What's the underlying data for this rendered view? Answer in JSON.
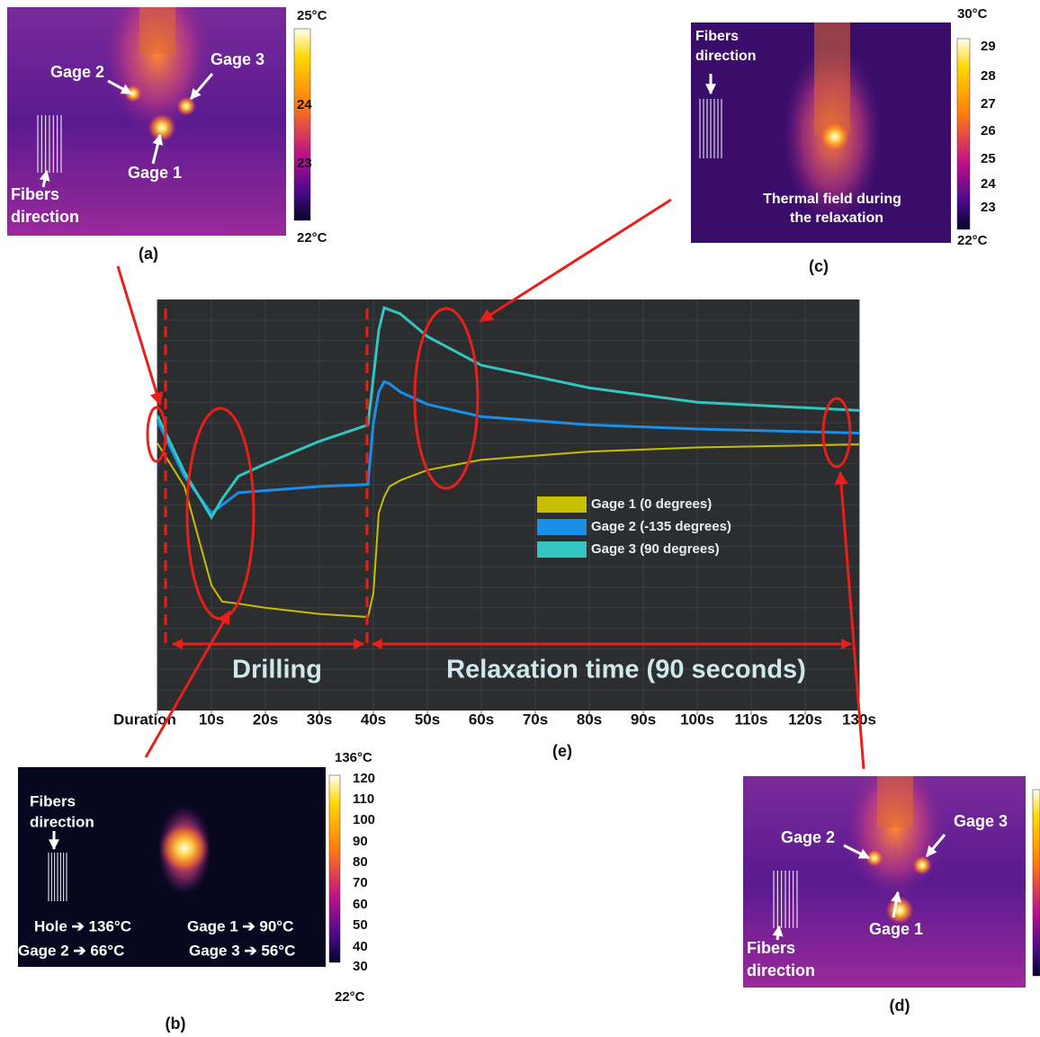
{
  "panels": [
    {
      "caption": "(a)",
      "labels": [
        "Gage 2",
        "Gage 3",
        "Gage 1",
        "Fibers",
        "direction"
      ],
      "colorbar": [
        "25°C",
        "24",
        "23",
        "22°C"
      ]
    },
    {
      "caption": "(c)",
      "labels": [
        "Fibers",
        "direction",
        "Thermal field during",
        "the relaxation"
      ],
      "colorbar": [
        "30°C",
        "29",
        "28",
        "27",
        "26",
        "25",
        "24",
        "23",
        "22°C"
      ]
    },
    {
      "caption": "(b)",
      "labels": [
        "Fibers",
        "direction",
        "Hole ➔ 136°C",
        "Gage 1 ➔ 90°C",
        "Gage 2 ➔ 66°C",
        "Gage 3 ➔ 56°C"
      ],
      "colorbar": [
        "136°C",
        "120",
        "110",
        "100",
        "90",
        "80",
        "70",
        "60",
        "50",
        "40",
        "30",
        "22°C"
      ]
    },
    {
      "caption": "(d)",
      "labels": [
        "Gage 2",
        "Gage 3",
        "Gage 1",
        "Fibers",
        "direction"
      ],
      "colorbar": []
    }
  ],
  "chart_data": {
    "type": "line",
    "caption": "(e)",
    "annotations": [
      "Drilling",
      "Relaxation time (90 seconds)"
    ],
    "x": [
      0,
      5,
      10,
      12,
      15,
      20,
      30,
      39,
      40,
      41,
      42,
      43,
      45,
      50,
      60,
      80,
      100,
      130
    ],
    "series": [
      {
        "name": "Gage 1 (0 degrees)",
        "color": "#c8bf00",
        "values": [
          13.0,
          10.9,
          6.1,
          5.3,
          5.2,
          5.0,
          4.7,
          4.55,
          5.7,
          9.6,
          10.4,
          10.9,
          11.2,
          11.7,
          12.2,
          12.6,
          12.8,
          12.95
        ]
      },
      {
        "name": "Gage 2 (-135 degrees)",
        "color": "#1a8fe8",
        "values": [
          14.1,
          11.4,
          9.6,
          10.0,
          10.6,
          10.7,
          10.9,
          11.0,
          14.0,
          15.5,
          16.0,
          15.9,
          15.5,
          14.9,
          14.3,
          13.9,
          13.7,
          13.5
        ]
      },
      {
        "name": "Gage 3 (90 degrees)",
        "color": "#33c6c0",
        "values": [
          14.35,
          11.6,
          9.4,
          10.3,
          11.4,
          12.0,
          13.1,
          13.9,
          16.2,
          18.5,
          19.6,
          19.5,
          19.3,
          18.2,
          16.8,
          15.7,
          15.0,
          14.6
        ]
      }
    ],
    "xlim": [
      0,
      130
    ],
    "ylim": [
      0,
      20
    ],
    "xticks": [
      {
        "value": 0,
        "label": "Duration"
      },
      {
        "value": 10,
        "label": "10s"
      },
      {
        "value": 20,
        "label": "20s"
      },
      {
        "value": 30,
        "label": "30s"
      },
      {
        "value": 40,
        "label": "40s"
      },
      {
        "value": 50,
        "label": "50s"
      },
      {
        "value": 60,
        "label": "60s"
      },
      {
        "value": 70,
        "label": "70s"
      },
      {
        "value": 80,
        "label": "80s"
      },
      {
        "value": 90,
        "label": "90s"
      },
      {
        "value": 100,
        "label": "100s"
      },
      {
        "value": 110,
        "label": "110s"
      },
      {
        "value": 120,
        "label": "120s"
      },
      {
        "value": 130,
        "label": "130s"
      }
    ],
    "grid": true
  }
}
